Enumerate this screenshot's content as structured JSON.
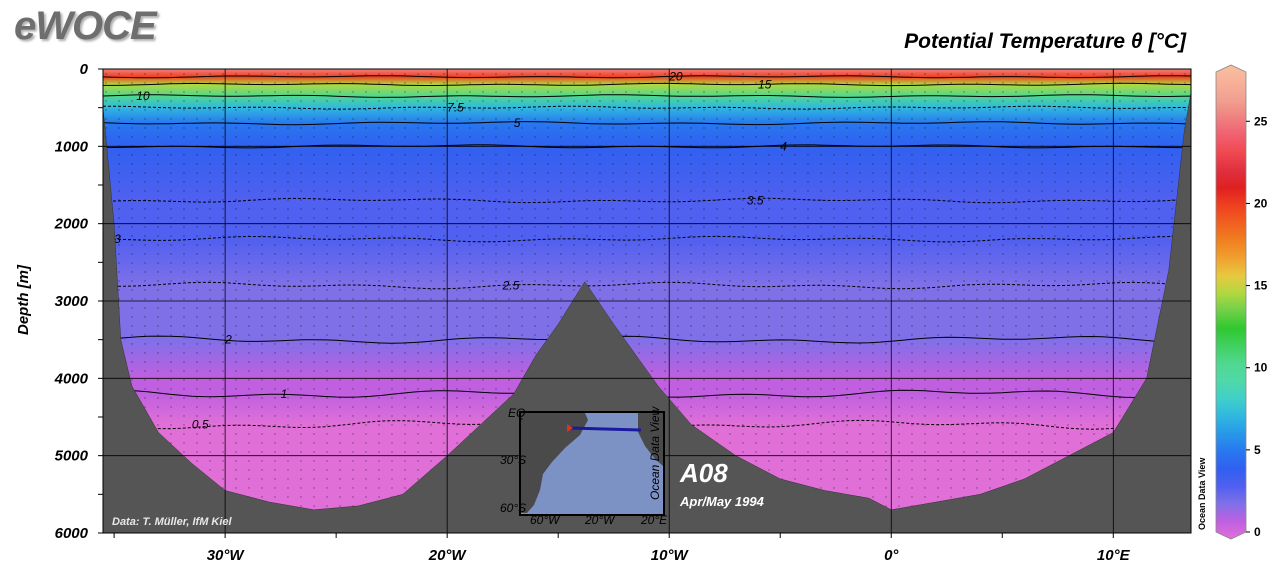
{
  "logo": "eWOCE",
  "title": "Potential Temperature θ [°C]",
  "chart_data": {
    "type": "heatmap",
    "title": "Potential Temperature θ [°C]",
    "section_name": "A08",
    "date": "Apr/May 1994",
    "credit": "Data: T. Müller, IfM Kiel",
    "watermark": "Ocean Data View",
    "ylabel": "Depth [m]",
    "xlabel": "",
    "xlim": [
      -35.5,
      13.5
    ],
    "ylim": [
      0,
      6000
    ],
    "y_inverted": true,
    "x_ticks": [
      {
        "value": -30,
        "label": "30°W"
      },
      {
        "value": -20,
        "label": "20°W"
      },
      {
        "value": -10,
        "label": "10°W"
      },
      {
        "value": 0,
        "label": "0°"
      },
      {
        "value": 10,
        "label": "10°E"
      }
    ],
    "y_ticks": [
      0,
      1000,
      2000,
      3000,
      4000,
      5000,
      6000
    ],
    "grid": true,
    "colorbar": {
      "range": [
        0,
        28
      ],
      "ticks": [
        0,
        5,
        10,
        15,
        20,
        25
      ],
      "colors": [
        "#e070d8",
        "#c060e0",
        "#8070e8",
        "#5060f0",
        "#3060f0",
        "#2878f0",
        "#2898e8",
        "#30b8e0",
        "#40d0c8",
        "#50d8a8",
        "#50d890",
        "#40d060",
        "#30c830",
        "#70d048",
        "#b0d840",
        "#e8c840",
        "#f0a030",
        "#f08020",
        "#f06020",
        "#f04020",
        "#e02020",
        "#e03040",
        "#f04850",
        "#f06070",
        "#f08080",
        "#f0a090",
        "#f8b098",
        "#f8c0a0"
      ]
    },
    "isotherms": [
      {
        "value": 20,
        "label": "20"
      },
      {
        "value": 15,
        "label": "15"
      },
      {
        "value": 10,
        "label": "10"
      },
      {
        "value": 7.5,
        "label": "7.5"
      },
      {
        "value": 5,
        "label": "5"
      },
      {
        "value": 4,
        "label": "4"
      },
      {
        "value": 3.5,
        "label": "3.5"
      },
      {
        "value": 3,
        "label": "3"
      },
      {
        "value": 2.5,
        "label": "2.5"
      },
      {
        "value": 2,
        "label": "2"
      },
      {
        "value": 1,
        "label": "1"
      },
      {
        "value": 0.5,
        "label": "0.5"
      }
    ],
    "temperature_profile": [
      {
        "depth": 0,
        "theta": 25
      },
      {
        "depth": 100,
        "theta": 20
      },
      {
        "depth": 200,
        "theta": 15
      },
      {
        "depth": 350,
        "theta": 10
      },
      {
        "depth": 500,
        "theta": 7.5
      },
      {
        "depth": 700,
        "theta": 5
      },
      {
        "depth": 1000,
        "theta": 4
      },
      {
        "depth": 1700,
        "theta": 3.5
      },
      {
        "depth": 2200,
        "theta": 3
      },
      {
        "depth": 2800,
        "theta": 2.5
      },
      {
        "depth": 3500,
        "theta": 2
      },
      {
        "depth": 4000,
        "theta": 1.5
      },
      {
        "depth": 4200,
        "theta": 1
      },
      {
        "depth": 4600,
        "theta": 0.5
      },
      {
        "depth": 5800,
        "theta": 0.2
      }
    ],
    "bottom_topography": [
      {
        "lon": -35.5,
        "depth": 500
      },
      {
        "lon": -35,
        "depth": 2000
      },
      {
        "lon": -34.7,
        "depth": 3500
      },
      {
        "lon": -34.2,
        "depth": 4100
      },
      {
        "lon": -33,
        "depth": 4700
      },
      {
        "lon": -31.5,
        "depth": 5100
      },
      {
        "lon": -30,
        "depth": 5450
      },
      {
        "lon": -28,
        "depth": 5600
      },
      {
        "lon": -26,
        "depth": 5700
      },
      {
        "lon": -24,
        "depth": 5650
      },
      {
        "lon": -22,
        "depth": 5500
      },
      {
        "lon": -20,
        "depth": 5000
      },
      {
        "lon": -18.5,
        "depth": 4600
      },
      {
        "lon": -17,
        "depth": 4200
      },
      {
        "lon": -16,
        "depth": 3700
      },
      {
        "lon": -15,
        "depth": 3300
      },
      {
        "lon": -13.8,
        "depth": 2750
      },
      {
        "lon": -12.5,
        "depth": 3300
      },
      {
        "lon": -11.5,
        "depth": 3700
      },
      {
        "lon": -10.5,
        "depth": 4100
      },
      {
        "lon": -9,
        "depth": 4600
      },
      {
        "lon": -7,
        "depth": 5000
      },
      {
        "lon": -5,
        "depth": 5300
      },
      {
        "lon": -3,
        "depth": 5450
      },
      {
        "lon": -1,
        "depth": 5550
      },
      {
        "lon": 0,
        "depth": 5700
      },
      {
        "lon": 2,
        "depth": 5600
      },
      {
        "lon": 4,
        "depth": 5500
      },
      {
        "lon": 6,
        "depth": 5300
      },
      {
        "lon": 8,
        "depth": 5000
      },
      {
        "lon": 10,
        "depth": 4700
      },
      {
        "lon": 11.5,
        "depth": 4000
      },
      {
        "lon": 12.5,
        "depth": 2600
      },
      {
        "lon": 13.2,
        "depth": 800
      },
      {
        "lon": 13.5,
        "depth": 300
      }
    ]
  },
  "inset_map": {
    "lat_labels": [
      "EQ",
      "30°S",
      "60°S"
    ],
    "lon_labels": [
      "60°W",
      "20°W",
      "20°E"
    ],
    "caption": "Ocean Data View",
    "track_color": "#1a1aa0",
    "station_color": "#e03020"
  }
}
